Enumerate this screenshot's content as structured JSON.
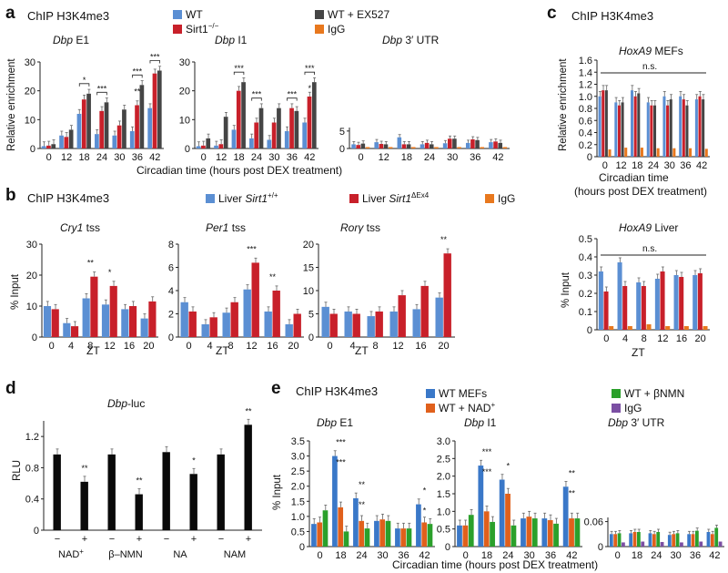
{
  "colors": {
    "blue": "#5b8fd3",
    "red": "#c8202a",
    "dark": "#454545",
    "orange": "#e8781e",
    "green": "#2ba02b",
    "purple": "#7b4fa3",
    "black": "#0a0a0a",
    "blueE": "#3a78c8",
    "orangeE": "#e0601c"
  },
  "panels": {
    "a": "a",
    "b": "b",
    "c": "c",
    "d": "d",
    "e": "e"
  },
  "titles": {
    "a": "ChIP H3K4me3",
    "b": "ChIP H3K4me3",
    "c": "ChIP H3K4me3",
    "e": "ChIP H3K4me3",
    "d_gene": "Dbp",
    "d_suffix": "-luc"
  },
  "legend_a": [
    {
      "label": "WT",
      "color": "blue"
    },
    {
      "label": "Sirt1",
      "sup": "−/−",
      "color": "red"
    },
    {
      "label": "WT + EX527",
      "color": "dark"
    },
    {
      "label": "IgG",
      "color": "orange"
    }
  ],
  "legend_b": [
    {
      "label": "Liver ",
      "it": "Sirt1",
      "sup": "+/+",
      "color": "blue"
    },
    {
      "label": "Liver ",
      "it": "Sirt1",
      "sup": "ΔEx4",
      "color": "red"
    },
    {
      "label": "IgG",
      "color": "orange"
    }
  ],
  "legend_e": [
    {
      "label": "WT MEFs",
      "color": "blueE"
    },
    {
      "label": "WT + NAD",
      "sup": "+",
      "color": "orangeE"
    },
    {
      "label": "WT + βNMN",
      "color": "green"
    },
    {
      "label": "IgG",
      "color": "purple"
    }
  ],
  "axis_labels": {
    "a_y": "Relative enrichment",
    "a_x": "Circadian time (hours post DEX treatment)",
    "b_y": "% Input",
    "b_x": "ZT",
    "c_y1": "Relative enrichment",
    "c_x1a": "Circadian time",
    "c_x1b": "(hours post DEX treatment)",
    "c_y2": "% Input",
    "c_x2": "ZT",
    "d_y": "RLU",
    "e_y": "% Input",
    "e_x": "Circadian time (hours post DEX treatment)"
  },
  "ns": "n.s.",
  "chart_data": [
    {
      "id": "a1",
      "type": "bar",
      "title": "Dbp",
      "title_suffix": " E1",
      "categories": [
        "0",
        "12",
        "18",
        "24",
        "30",
        "36",
        "42"
      ],
      "ylim": [
        0,
        30
      ],
      "yticks": [
        "0",
        "10",
        "20",
        "30"
      ],
      "series": [
        {
          "name": "WT",
          "color": "blue",
          "values": [
            0.8,
            4.5,
            12,
            5,
            4.5,
            6,
            14
          ]
        },
        {
          "name": "Sirt1−/−",
          "color": "red",
          "values": [
            1,
            4,
            17,
            13,
            8,
            15,
            26
          ]
        },
        {
          "name": "WT + EX527",
          "color": "dark",
          "values": [
            1.5,
            6.5,
            19,
            16,
            13.5,
            22,
            27
          ]
        }
      ],
      "annotations": [
        {
          "cat": 2,
          "text": "*"
        },
        {
          "cat": 3,
          "text": "***"
        },
        {
          "cat": 5,
          "text": "***"
        },
        {
          "cat": 5,
          "text": "**",
          "low": true
        },
        {
          "cat": 6,
          "text": "***"
        }
      ]
    },
    {
      "id": "a2",
      "type": "bar",
      "title": "Dbp",
      "title_suffix": " I1",
      "categories": [
        "0",
        "12",
        "18",
        "24",
        "30",
        "36",
        "42"
      ],
      "ylim": [
        0,
        30
      ],
      "yticks": [
        "0",
        "10",
        "20",
        "30"
      ],
      "series": [
        {
          "name": "WT",
          "color": "blue",
          "values": [
            0.8,
            1,
            6.5,
            3.5,
            3,
            6,
            9
          ]
        },
        {
          "name": "Sirt1−/−",
          "color": "red",
          "values": [
            1,
            1.5,
            20,
            9,
            9,
            14,
            18
          ]
        },
        {
          "name": "WT + EX527",
          "color": "dark",
          "values": [
            3.5,
            11,
            23,
            14,
            14,
            13,
            23
          ]
        }
      ],
      "annotations": [
        {
          "cat": 2,
          "text": "***"
        },
        {
          "cat": 3,
          "text": "***"
        },
        {
          "cat": 5,
          "text": "***"
        },
        {
          "cat": 6,
          "text": "***"
        },
        {
          "cat": 6,
          "text": "*",
          "low": true
        }
      ]
    },
    {
      "id": "a3",
      "type": "bar",
      "title": "Dbp",
      "title_suffix": " 3′ UTR",
      "categories": [
        "0",
        "12",
        "18",
        "24",
        "30",
        "36",
        "42"
      ],
      "ylim": [
        0,
        6
      ],
      "yticks": [
        "0",
        "5"
      ],
      "series": [
        {
          "name": "WT",
          "color": "blue",
          "values": [
            1.2,
            1.8,
            3.2,
            1.2,
            1.5,
            1.6,
            1.8
          ]
        },
        {
          "name": "Sirt1−/−",
          "color": "red",
          "values": [
            1.0,
            1.3,
            1.2,
            1.6,
            2.8,
            2.6,
            2.0
          ]
        },
        {
          "name": "WT + EX527",
          "color": "dark",
          "values": [
            1.4,
            1.2,
            1.2,
            1.2,
            2.8,
            2.4,
            1.6
          ]
        },
        {
          "name": "IgG",
          "color": "orange",
          "values": [
            0.4,
            0.4,
            0.4,
            0.4,
            0.4,
            0.4,
            0.4
          ]
        }
      ]
    },
    {
      "id": "b1",
      "type": "bar",
      "title": "Cry1",
      "title_suffix": " tss",
      "categories": [
        "0",
        "4",
        "8",
        "12",
        "16",
        "20"
      ],
      "ylim": [
        0,
        30
      ],
      "yticks": [
        "0",
        "10",
        "20",
        "30"
      ],
      "series": [
        {
          "name": "Liver Sirt1+/+",
          "color": "blue",
          "values": [
            10,
            4.5,
            12.5,
            10.5,
            9,
            6
          ]
        },
        {
          "name": "Liver Sirt1ΔEx4",
          "color": "red",
          "values": [
            9,
            3.5,
            19.5,
            16.5,
            10,
            11.5
          ]
        }
      ],
      "annotations": [
        {
          "cat": 2,
          "text": "**"
        },
        {
          "cat": 3,
          "text": "*"
        }
      ]
    },
    {
      "id": "b2",
      "type": "bar",
      "title": "Per1",
      "title_suffix": " tss",
      "categories": [
        "0",
        "4",
        "8",
        "12",
        "16",
        "20"
      ],
      "ylim": [
        0,
        8
      ],
      "yticks": [
        "0",
        "2",
        "4",
        "6",
        "8"
      ],
      "series": [
        {
          "name": "Liver Sirt1+/+",
          "color": "blue",
          "values": [
            3,
            1.1,
            2.1,
            4.1,
            2.2,
            1.1
          ]
        },
        {
          "name": "Liver Sirt1ΔEx4",
          "color": "red",
          "values": [
            2.2,
            1.7,
            3.0,
            6.4,
            4.0,
            2.0
          ]
        }
      ],
      "annotations": [
        {
          "cat": 3,
          "text": "***"
        },
        {
          "cat": 4,
          "text": "**"
        }
      ]
    },
    {
      "id": "b3",
      "type": "bar",
      "title": "Rorγ",
      "title_suffix": " tss",
      "categories": [
        "0",
        "4",
        "8",
        "12",
        "16",
        "20"
      ],
      "ylim": [
        0,
        20
      ],
      "yticks": [
        "0",
        "5",
        "10",
        "15",
        "20"
      ],
      "series": [
        {
          "name": "Liver Sirt1+/+",
          "color": "blue",
          "values": [
            6.5,
            5.5,
            4.5,
            5.5,
            6,
            8.5
          ]
        },
        {
          "name": "Liver Sirt1ΔEx4",
          "color": "red",
          "values": [
            5,
            5,
            5.5,
            9,
            11,
            18
          ]
        }
      ],
      "annotations": [
        {
          "cat": 5,
          "text": "**"
        }
      ]
    },
    {
      "id": "c1",
      "type": "bar",
      "title": "HoxA9",
      "title_suffix": "  MEFs",
      "categories": [
        "0",
        "12",
        "18",
        "24",
        "30",
        "36",
        "42"
      ],
      "ylim": [
        0,
        1.6
      ],
      "yticks": [
        "0",
        "0.2",
        "0.4",
        "0.6",
        "0.8",
        "1.0",
        "1.2",
        "1.4",
        "1.6"
      ],
      "series": [
        {
          "name": "WT",
          "color": "blue",
          "values": [
            1.0,
            0.9,
            1.1,
            0.9,
            1.0,
            1.0,
            0.95
          ]
        },
        {
          "name": "Sirt1−/−",
          "color": "red",
          "values": [
            1.1,
            0.85,
            1.0,
            0.85,
            0.85,
            0.95,
            1.0
          ]
        },
        {
          "name": "WT + EX527",
          "color": "dark",
          "values": [
            1.1,
            0.9,
            1.05,
            0.85,
            0.95,
            0.85,
            0.95
          ]
        },
        {
          "name": "IgG",
          "color": "orange",
          "values": [
            0.12,
            0.15,
            0.15,
            0.14,
            0.14,
            0.14,
            0.13
          ]
        }
      ]
    },
    {
      "id": "c2",
      "type": "bar",
      "title": "HoxA9",
      "title_suffix": " Liver",
      "categories": [
        "0",
        "4",
        "8",
        "12",
        "16",
        "20"
      ],
      "ylim": [
        0,
        0.5
      ],
      "yticks": [
        "0",
        "0.1",
        "0.2",
        "0.3",
        "0.4",
        "0.5"
      ],
      "series": [
        {
          "name": "Liver Sirt1+/+",
          "color": "blue",
          "values": [
            0.32,
            0.37,
            0.26,
            0.28,
            0.3,
            0.3
          ]
        },
        {
          "name": "Liver Sirt1ΔEx4",
          "color": "red",
          "values": [
            0.21,
            0.24,
            0.24,
            0.32,
            0.29,
            0.31
          ]
        },
        {
          "name": "IgG",
          "color": "orange",
          "values": [
            0.02,
            0.02,
            0.03,
            0.02,
            0.02,
            0.02
          ]
        }
      ]
    },
    {
      "id": "d",
      "type": "bar",
      "categories": [
        "−",
        "+",
        "−",
        "+",
        "−",
        "+",
        "−",
        "+"
      ],
      "groups": [
        "NAD",
        "β–NMN",
        "NA",
        "NAM"
      ],
      "group_sup": [
        "+",
        "",
        "",
        ""
      ],
      "ylim": [
        0,
        1.4
      ],
      "yticks": [
        "0",
        "0.4",
        "0.8",
        "1.2"
      ],
      "series": [
        {
          "name": "RLU",
          "color": "black",
          "values": [
            0.97,
            0.62,
            0.97,
            0.46,
            1.0,
            0.72,
            0.97,
            1.35
          ]
        }
      ],
      "annotations": [
        {
          "cat": 1,
          "text": "**"
        },
        {
          "cat": 3,
          "text": "**"
        },
        {
          "cat": 5,
          "text": "*"
        },
        {
          "cat": 7,
          "text": "**"
        }
      ]
    },
    {
      "id": "e1",
      "type": "bar",
      "title": "Dbp",
      "title_suffix": " E1",
      "categories": [
        "0",
        "18",
        "24",
        "30",
        "36",
        "42"
      ],
      "ylim": [
        0,
        3.5
      ],
      "yticks": [
        "0",
        "0.5",
        "1.0",
        "1.5",
        "2.0",
        "2.5",
        "3.0",
        "3.5"
      ],
      "series": [
        {
          "name": "WT MEFs",
          "color": "blueE",
          "values": [
            0.75,
            3.0,
            1.6,
            0.85,
            0.6,
            1.4
          ]
        },
        {
          "name": "WT + NAD+",
          "color": "orangeE",
          "values": [
            0.8,
            1.3,
            0.85,
            0.9,
            0.6,
            0.8
          ]
        },
        {
          "name": "WT + βNMN",
          "color": "green",
          "values": [
            1.2,
            0.5,
            0.6,
            0.85,
            0.6,
            0.75
          ]
        }
      ],
      "annotations": [
        {
          "cat": 1,
          "text": "***"
        },
        {
          "cat": 1,
          "text": "***",
          "low": true
        },
        {
          "cat": 2,
          "text": "**"
        },
        {
          "cat": 2,
          "text": "**",
          "low": true
        },
        {
          "cat": 5,
          "text": "*"
        },
        {
          "cat": 5,
          "text": "*",
          "low": true
        }
      ]
    },
    {
      "id": "e2",
      "type": "bar",
      "title": "Dbp",
      "title_suffix": " I1",
      "categories": [
        "0",
        "18",
        "24",
        "30",
        "36",
        "42"
      ],
      "ylim": [
        0,
        3.0
      ],
      "yticks": [
        "0",
        "0.5",
        "1.0",
        "1.5",
        "2.0",
        "2.5",
        "3.0"
      ],
      "series": [
        {
          "name": "WT MEFs",
          "color": "blueE",
          "values": [
            0.6,
            2.3,
            1.9,
            0.8,
            0.8,
            1.7
          ]
        },
        {
          "name": "WT + NAD+",
          "color": "orangeE",
          "values": [
            0.6,
            1.0,
            1.5,
            0.85,
            0.75,
            0.8
          ]
        },
        {
          "name": "WT + βNMN",
          "color": "green",
          "values": [
            0.9,
            0.7,
            0.6,
            0.8,
            0.65,
            0.8
          ]
        }
      ],
      "annotations": [
        {
          "cat": 1,
          "text": "***"
        },
        {
          "cat": 1,
          "text": "***",
          "low": true
        },
        {
          "cat": 2,
          "text": "*"
        },
        {
          "cat": 5,
          "text": "**"
        },
        {
          "cat": 5,
          "text": "**",
          "low": true
        }
      ]
    },
    {
      "id": "e3",
      "type": "bar",
      "title": "Dbp",
      "title_suffix": " 3′ UTR",
      "categories": [
        "0",
        "18",
        "24",
        "30",
        "36",
        "42"
      ],
      "ylim": [
        0,
        0.07
      ],
      "yticks": [
        "0",
        "0.06"
      ],
      "series": [
        {
          "name": "WT MEFs",
          "color": "blueE",
          "values": [
            0.03,
            0.032,
            0.032,
            0.028,
            0.03,
            0.035
          ]
        },
        {
          "name": "WT + NAD+",
          "color": "orangeE",
          "values": [
            0.03,
            0.035,
            0.03,
            0.03,
            0.03,
            0.03
          ]
        },
        {
          "name": "WT + βNMN",
          "color": "green",
          "values": [
            0.032,
            0.035,
            0.035,
            0.032,
            0.038,
            0.045
          ]
        },
        {
          "name": "IgG",
          "color": "purple",
          "values": [
            0.01,
            0.012,
            0.011,
            0.01,
            0.012,
            0.012
          ]
        }
      ]
    }
  ]
}
